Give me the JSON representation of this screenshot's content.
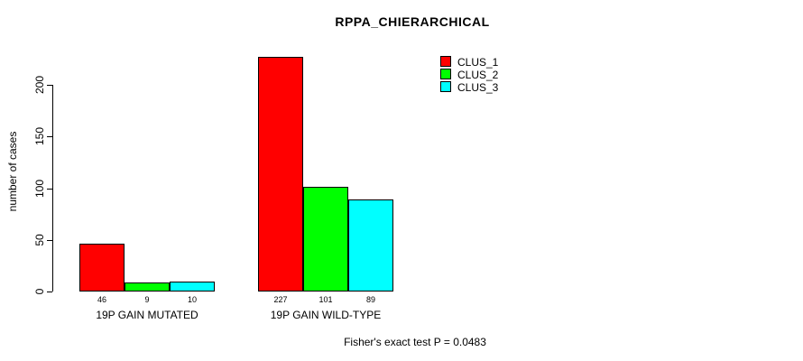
{
  "title": "RPPA_CHIERARCHICAL",
  "chart_data": {
    "type": "bar",
    "title": "RPPA_CHIERARCHICAL",
    "xlabel": "",
    "ylabel": "number of cases",
    "categories": [
      "19P GAIN MUTATED",
      "19P GAIN WILD-TYPE"
    ],
    "series": [
      {
        "name": "CLUS_1",
        "color": "#ff0000",
        "values": [
          46,
          227
        ]
      },
      {
        "name": "CLUS_2",
        "color": "#00ff00",
        "values": [
          9,
          101
        ]
      },
      {
        "name": "CLUS_3",
        "color": "#00ffff",
        "values": [
          10,
          89
        ]
      }
    ],
    "yticks": [
      0,
      50,
      100,
      150,
      200
    ],
    "ylim": [
      0,
      230
    ],
    "grid": false,
    "legend_position": "top-right",
    "bar_value_labels": true,
    "annotation": "Fisher's exact test P = 0.0483"
  },
  "colors": {
    "background": "#ffffff",
    "axis": "#000000",
    "text": "#000000",
    "bar_border": "#000000"
  }
}
